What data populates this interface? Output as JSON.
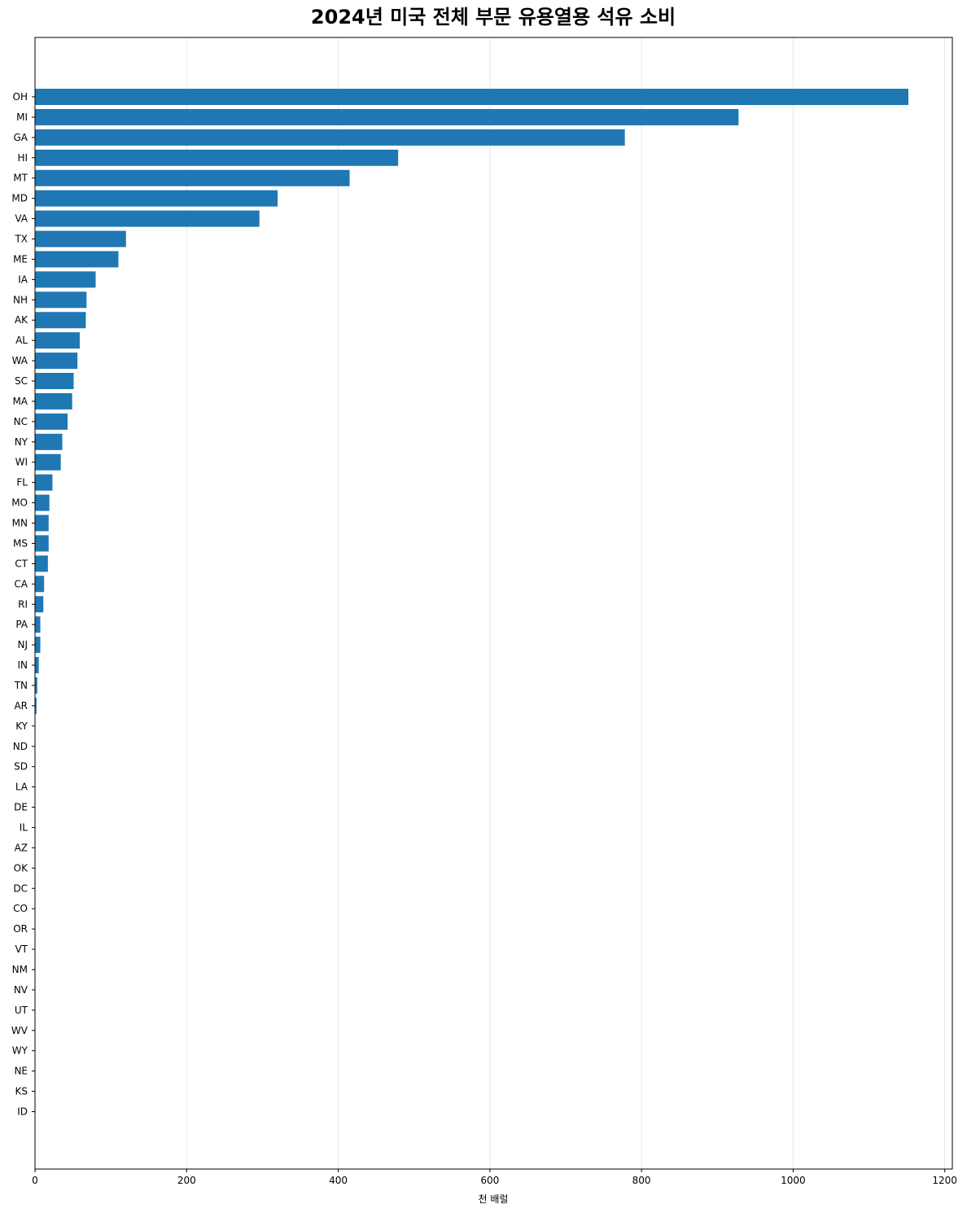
{
  "chart_data": {
    "type": "bar",
    "orientation": "horizontal",
    "title": "2024년 미국 전체 부문 유용열용 석유 소비",
    "xlabel": "천 배럴",
    "ylabel": "",
    "xlim": [
      0,
      1210
    ],
    "xticks": [
      0,
      200,
      400,
      600,
      800,
      1000,
      1200
    ],
    "grid": "x",
    "bar_color": "#1f77b4",
    "categories": [
      "OH",
      "MI",
      "GA",
      "HI",
      "MT",
      "MD",
      "VA",
      "TX",
      "ME",
      "IA",
      "NH",
      "AK",
      "AL",
      "WA",
      "SC",
      "MA",
      "NC",
      "NY",
      "WI",
      "FL",
      "MO",
      "MN",
      "MS",
      "CT",
      "CA",
      "RI",
      "PA",
      "NJ",
      "IN",
      "TN",
      "AR",
      "KY",
      "ND",
      "SD",
      "LA",
      "DE",
      "IL",
      "AZ",
      "OK",
      "DC",
      "CO",
      "OR",
      "VT",
      "NM",
      "NV",
      "UT",
      "WV",
      "WY",
      "NE",
      "KS",
      "ID"
    ],
    "values": [
      1152,
      928,
      778,
      479,
      415,
      320,
      296,
      120,
      110,
      80,
      68,
      67,
      59,
      56,
      51,
      49,
      43,
      36,
      34,
      23,
      19,
      18,
      18,
      17,
      12,
      11,
      7,
      7,
      5,
      3,
      2,
      0.5,
      0.3,
      0.3,
      0.2,
      0.2,
      0.2,
      0.1,
      0.1,
      0.1,
      0.1,
      0.1,
      0.1,
      0.1,
      0.1,
      0.1,
      0.1,
      0.1,
      0.1,
      0.1,
      0.1
    ]
  }
}
